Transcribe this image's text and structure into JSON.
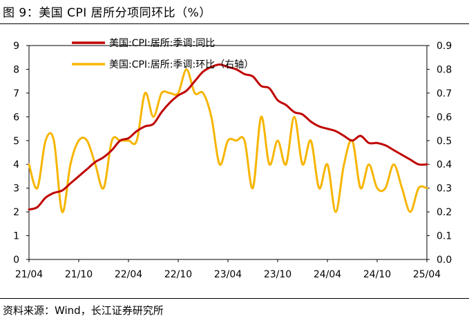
{
  "figure": {
    "title": "图 9：美国 CPI 居所分项同环比（%）",
    "source": "资料来源：Wind，长江证券研究所"
  },
  "chart_data": {
    "type": "line",
    "title": "图 9：美国 CPI 居所分项同环比（%）",
    "xlabel": "",
    "ylabel": "",
    "x_tick_labels": [
      "21/04",
      "21/10",
      "22/04",
      "22/10",
      "23/04",
      "23/10",
      "24/04",
      "24/10",
      "25/04"
    ],
    "x": [
      "21/04",
      "21/05",
      "21/06",
      "21/07",
      "21/08",
      "21/09",
      "21/10",
      "21/11",
      "21/12",
      "22/01",
      "22/02",
      "22/03",
      "22/04",
      "22/05",
      "22/06",
      "22/07",
      "22/08",
      "22/09",
      "22/10",
      "22/11",
      "22/12",
      "23/01",
      "23/02",
      "23/03",
      "23/04",
      "23/05",
      "23/06",
      "23/07",
      "23/08",
      "23/09",
      "23/10",
      "23/11",
      "23/12",
      "24/01",
      "24/02",
      "24/03",
      "24/04",
      "24/05",
      "24/06",
      "24/07",
      "24/08",
      "24/09",
      "24/10",
      "24/11",
      "24/12",
      "25/01",
      "25/02",
      "25/03",
      "25/04"
    ],
    "ylim_left": [
      0,
      9
    ],
    "ylim_right": [
      0.0,
      0.9
    ],
    "y_left_ticks": [
      "0",
      "1",
      "2",
      "3",
      "4",
      "5",
      "6",
      "7",
      "8",
      "9"
    ],
    "y_right_ticks": [
      "0.0",
      "0.1",
      "0.2",
      "0.3",
      "0.4",
      "0.5",
      "0.6",
      "0.7",
      "0.8",
      "0.9"
    ],
    "legend_position": "top-left",
    "series": [
      {
        "name": "美国:CPI:居所:季调:同比",
        "axis": "left",
        "color": "#c00000",
        "values": [
          2.1,
          2.2,
          2.6,
          2.8,
          2.9,
          3.2,
          3.5,
          3.8,
          4.1,
          4.3,
          4.6,
          5.0,
          5.1,
          5.4,
          5.6,
          5.7,
          6.2,
          6.6,
          6.9,
          7.1,
          7.5,
          7.9,
          8.1,
          8.2,
          8.1,
          8.0,
          7.8,
          7.7,
          7.3,
          7.2,
          6.7,
          6.5,
          6.2,
          6.1,
          5.8,
          5.6,
          5.5,
          5.4,
          5.2,
          5.0,
          5.2,
          4.9,
          4.9,
          4.8,
          4.6,
          4.4,
          4.2,
          4.0,
          4.0
        ]
      },
      {
        "name": "美国:CPI:居所:季调:环比（右轴）",
        "axis": "right",
        "color": "#f7b500",
        "values": [
          0.4,
          0.3,
          0.5,
          0.5,
          0.2,
          0.4,
          0.5,
          0.5,
          0.4,
          0.3,
          0.5,
          0.5,
          0.5,
          0.5,
          0.7,
          0.6,
          0.7,
          0.7,
          0.7,
          0.8,
          0.7,
          0.7,
          0.6,
          0.4,
          0.5,
          0.5,
          0.5,
          0.3,
          0.6,
          0.4,
          0.5,
          0.4,
          0.6,
          0.4,
          0.5,
          0.3,
          0.4,
          0.2,
          0.4,
          0.5,
          0.3,
          0.4,
          0.3,
          0.3,
          0.4,
          0.3,
          0.2,
          0.3,
          0.3
        ]
      }
    ]
  }
}
